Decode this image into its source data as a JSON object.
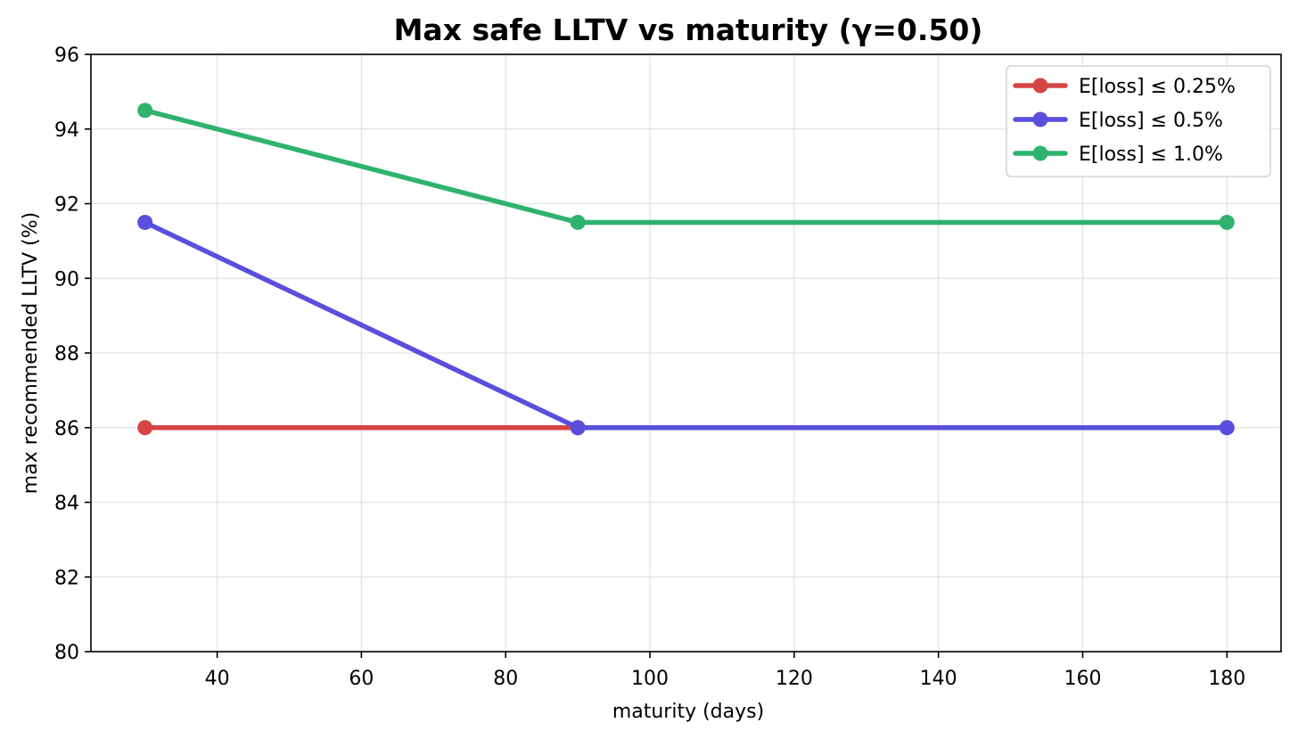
{
  "chart_data": {
    "type": "line",
    "title": "Max safe LLTV vs maturity  (γ=0.50)",
    "xlabel": "maturity (days)",
    "ylabel": "max recommended LLTV (%)",
    "x": [
      30,
      90,
      180
    ],
    "xlim": [
      22.5,
      187.5
    ],
    "ylim": [
      80,
      96
    ],
    "xticks": [
      40,
      60,
      80,
      100,
      120,
      140,
      160,
      180
    ],
    "yticks": [
      80,
      82,
      84,
      86,
      88,
      90,
      92,
      94,
      96
    ],
    "grid": true,
    "legend_position": "top-right",
    "series": [
      {
        "name": "E[loss] ≤ 0.25%",
        "color": "#d64545",
        "values": [
          86.0,
          86.0,
          null
        ]
      },
      {
        "name": "E[loss] ≤ 0.5%",
        "color": "#5a4fdc",
        "values": [
          91.5,
          86.0,
          86.0
        ]
      },
      {
        "name": "E[loss] ≤ 1.0%",
        "color": "#2eb36e",
        "values": [
          94.5,
          91.5,
          91.5
        ]
      }
    ]
  }
}
